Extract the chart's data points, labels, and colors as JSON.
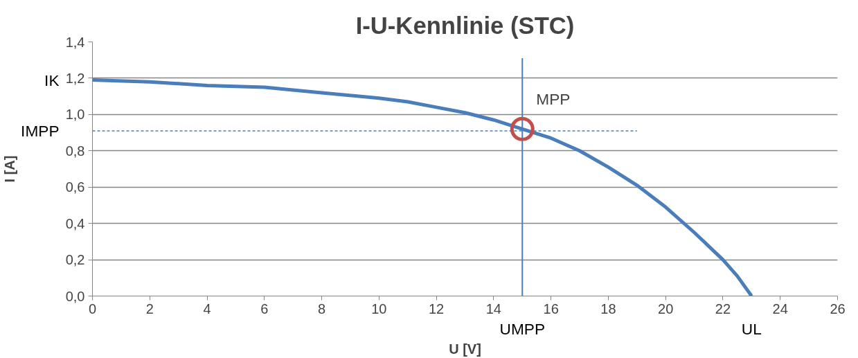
{
  "chart_data": {
    "type": "line",
    "title": "I-U-Kennlinie (STC)",
    "xlabel": "U [V]",
    "ylabel": "I [A]",
    "xlim": [
      0,
      26
    ],
    "xticks": [
      0,
      2,
      4,
      6,
      8,
      10,
      12,
      14,
      16,
      18,
      20,
      22,
      24,
      26
    ],
    "ylim": [
      0,
      1.4
    ],
    "yticks": [
      {
        "value": 0,
        "label": "0,0"
      },
      {
        "value": 0.2,
        "label": "0,2"
      },
      {
        "value": 0.4,
        "label": "0,4"
      },
      {
        "value": 0.6,
        "label": "0,6"
      },
      {
        "value": 0.8,
        "label": "0,8"
      },
      {
        "value": 1.0,
        "label": "1,0"
      },
      {
        "value": 1.2,
        "label": "1,2"
      },
      {
        "value": 1.4,
        "label": "1,4"
      }
    ],
    "grid": "y",
    "marker": "none",
    "line_style": "solid",
    "series": [
      {
        "color": "#4a7ebb",
        "x": [
          0,
          2,
          4,
          6,
          8,
          10,
          11,
          12,
          13,
          14,
          15,
          16,
          17,
          18,
          19,
          20,
          21,
          22,
          22.5,
          23
        ],
        "values": [
          1.19,
          1.18,
          1.16,
          1.15,
          1.12,
          1.09,
          1.07,
          1.04,
          1.01,
          0.97,
          0.92,
          0.87,
          0.8,
          0.71,
          0.61,
          0.49,
          0.35,
          0.2,
          0.11,
          0
        ]
      },
      {
        "type": "line",
        "color": "#4a7ebb",
        "line_style": "dashed",
        "x": [
          0,
          19
        ],
        "values": [
          0.91,
          0.91
        ]
      },
      {
        "type": "line",
        "color": "#4a7ebb",
        "x": [
          15,
          15
        ],
        "values": [
          0,
          1.31
        ]
      },
      {
        "type": "scatter",
        "marker": "circle",
        "color": "#c0504d",
        "x": [
          15
        ],
        "values": [
          0.92
        ]
      }
    ],
    "annotations": [
      {
        "text": "IK",
        "x": 0,
        "y": 1.19
      },
      {
        "text": "IMPP",
        "x": 0,
        "y": 0.91
      },
      {
        "text": "UMPP",
        "x": 15,
        "y": 0
      },
      {
        "text": "UL",
        "x": 23,
        "y": 0
      },
      {
        "text": "MPP",
        "x": 15,
        "y": 0.92
      }
    ]
  }
}
